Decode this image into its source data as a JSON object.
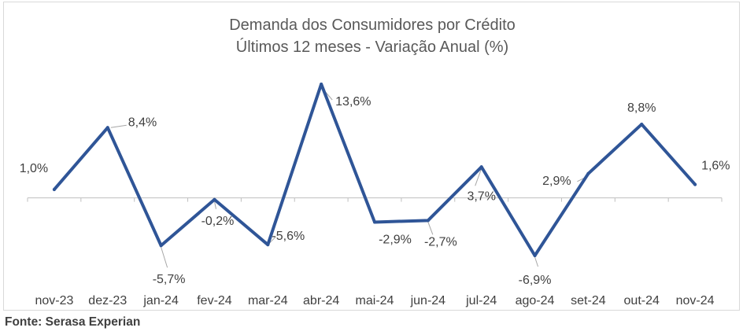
{
  "chart_data": {
    "type": "line",
    "title": "Demanda dos Consumidores por Crédito",
    "subtitle": "Últimos 12 meses - Variação Anual (%)",
    "categories": [
      "nov-23",
      "dez-23",
      "jan-24",
      "fev-24",
      "mar-24",
      "abr-24",
      "mai-24",
      "jun-24",
      "jul-24",
      "ago-24",
      "set-24",
      "out-24",
      "nov-24"
    ],
    "series": [
      {
        "values": [
          1.0,
          8.4,
          -5.7,
          -0.2,
          -5.6,
          13.6,
          -2.9,
          -2.7,
          3.7,
          -6.9,
          2.9,
          8.8,
          1.6
        ],
        "labels": [
          "1,0%",
          "8,4%",
          "-5,7%",
          "-0,2%",
          "-5,6%",
          "13,6%",
          "-2,9%",
          "-2,7%",
          "3,7%",
          "-6,9%",
          "2,9%",
          "8,8%",
          "1,6%"
        ]
      }
    ],
    "ylim": [
      -10,
      15
    ],
    "grid": false,
    "line_color": "#2f5597",
    "axis_color": "#bfbfbf",
    "leader_color": "#a6a6a6"
  },
  "source": "Fonte: Serasa Experian"
}
